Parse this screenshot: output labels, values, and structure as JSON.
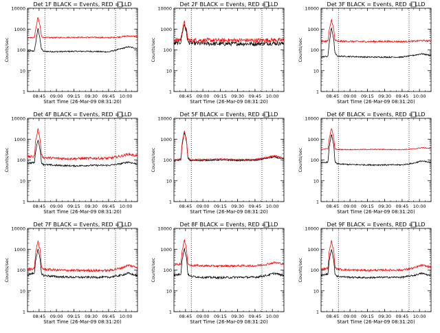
{
  "page": {
    "background": "#ffffff"
  },
  "colors": {
    "events": "#000000",
    "lld": "#ff0000",
    "axis": "#000000"
  },
  "chart_data": [
    {
      "type": "line",
      "title": "Det 1F BLACK = Events, RED = LLD",
      "xlabel": "Start Time (26-Mar-09 08:31:20)",
      "ylabel": "Counts/sec",
      "y_scale": "log",
      "xlim": [
        "08:35",
        "10:10"
      ],
      "ylim": [
        1,
        10000
      ],
      "x_ticks": [
        "08:45",
        "09:00",
        "09:15",
        "09:30",
        "09:45",
        "10:00"
      ],
      "y_ticks": [
        "1",
        "10",
        "100",
        "1000",
        "10000"
      ],
      "markers_x": [
        "08:50",
        "09:51"
      ],
      "grid": false,
      "series": [
        {
          "name": "Events",
          "color": "#000000",
          "noise": 0.03,
          "x": [
            "08:35",
            "08:41",
            "08:42",
            "08:44",
            "08:46",
            "08:47",
            "08:49",
            "09:00",
            "09:15",
            "09:30",
            "09:45",
            "09:55",
            "10:02",
            "10:09"
          ],
          "values": [
            85,
            90,
            200,
            1100,
            300,
            110,
            85,
            82,
            85,
            85,
            80,
            110,
            140,
            120
          ]
        },
        {
          "name": "LLD",
          "color": "#ff0000",
          "noise": 0.03,
          "x": [
            "08:35",
            "08:41",
            "08:42",
            "08:44",
            "08:46",
            "08:47",
            "08:49",
            "09:00",
            "09:15",
            "09:30",
            "09:45",
            "09:55",
            "10:02",
            "10:09"
          ],
          "values": [
            380,
            400,
            900,
            3800,
            1300,
            450,
            390,
            390,
            400,
            400,
            385,
            420,
            470,
            440
          ]
        }
      ]
    },
    {
      "type": "line",
      "title": "Det 2F BLACK = Events, RED = LLD",
      "xlabel": "Start Time (26-Mar-09 08:31:20)",
      "ylabel": "Counts/sec",
      "y_scale": "log",
      "xlim": [
        "08:35",
        "10:10"
      ],
      "ylim": [
        1,
        10000
      ],
      "x_ticks": [
        "08:45",
        "09:00",
        "09:15",
        "09:30",
        "09:45",
        "10:00"
      ],
      "y_ticks": [
        "1",
        "10",
        "100",
        "1000",
        "10000"
      ],
      "markers_x": [
        "08:50",
        "09:51"
      ],
      "grid": false,
      "series": [
        {
          "name": "Events",
          "color": "#000000",
          "noise": 0.1,
          "x": [
            "08:35",
            "08:41",
            "08:42",
            "08:44",
            "08:46",
            "08:47",
            "08:49",
            "09:00",
            "09:15",
            "09:30",
            "09:45",
            "09:55",
            "10:02",
            "10:09"
          ],
          "values": [
            200,
            230,
            600,
            1800,
            600,
            240,
            210,
            200,
            195,
            200,
            195,
            205,
            210,
            200
          ]
        },
        {
          "name": "LLD",
          "color": "#ff0000",
          "noise": 0.1,
          "x": [
            "08:35",
            "08:41",
            "08:42",
            "08:44",
            "08:46",
            "08:47",
            "08:49",
            "09:00",
            "09:15",
            "09:30",
            "09:45",
            "09:55",
            "10:02",
            "10:09"
          ],
          "values": [
            280,
            320,
            800,
            2200,
            800,
            320,
            290,
            290,
            285,
            290,
            285,
            295,
            300,
            290
          ]
        }
      ]
    },
    {
      "type": "line",
      "title": "Det 3F BLACK = Events, RED = LLD",
      "xlabel": "Start Time (26-Mar-09 08:31:20)",
      "ylabel": "Counts/sec",
      "y_scale": "log",
      "xlim": [
        "08:35",
        "10:10"
      ],
      "ylim": [
        1,
        10000
      ],
      "x_ticks": [
        "08:45",
        "09:00",
        "09:15",
        "09:30",
        "09:45",
        "10:00"
      ],
      "y_ticks": [
        "1",
        "10",
        "100",
        "1000",
        "10000"
      ],
      "markers_x": [
        "08:50",
        "09:51"
      ],
      "grid": false,
      "series": [
        {
          "name": "Events",
          "color": "#000000",
          "noise": 0.03,
          "x": [
            "08:35",
            "08:41",
            "08:42",
            "08:44",
            "08:46",
            "08:47",
            "08:49",
            "09:00",
            "09:15",
            "09:30",
            "09:45",
            "09:55",
            "10:02",
            "10:09"
          ],
          "values": [
            45,
            50,
            200,
            1200,
            300,
            70,
            50,
            48,
            45,
            45,
            45,
            55,
            65,
            55
          ]
        },
        {
          "name": "LLD",
          "color": "#ff0000",
          "noise": 0.04,
          "x": [
            "08:35",
            "08:41",
            "08:42",
            "08:44",
            "08:46",
            "08:47",
            "08:49",
            "09:00",
            "09:15",
            "09:30",
            "09:45",
            "09:55",
            "10:02",
            "10:09"
          ],
          "values": [
            250,
            270,
            800,
            3000,
            900,
            290,
            260,
            255,
            250,
            255,
            250,
            260,
            280,
            265
          ]
        }
      ]
    },
    {
      "type": "line",
      "title": "Det 4F BLACK = Events, RED = LLD",
      "xlabel": "Start Time (26-Mar-09 08:31:20)",
      "ylabel": "Counts/sec",
      "y_scale": "log",
      "xlim": [
        "08:35",
        "10:10"
      ],
      "ylim": [
        1,
        10000
      ],
      "x_ticks": [
        "08:45",
        "09:00",
        "09:15",
        "09:30",
        "09:45",
        "10:00"
      ],
      "y_ticks": [
        "1",
        "10",
        "100",
        "1000",
        "10000"
      ],
      "markers_x": [
        "08:50",
        "09:51"
      ],
      "grid": false,
      "series": [
        {
          "name": "Events",
          "color": "#000000",
          "noise": 0.04,
          "x": [
            "08:35",
            "08:41",
            "08:42",
            "08:44",
            "08:46",
            "08:47",
            "08:49",
            "09:00",
            "09:15",
            "09:30",
            "09:45",
            "09:55",
            "10:02",
            "10:09"
          ],
          "values": [
            70,
            75,
            250,
            1000,
            300,
            75,
            60,
            55,
            52,
            55,
            55,
            65,
            80,
            65
          ]
        },
        {
          "name": "LLD",
          "color": "#ff0000",
          "noise": 0.06,
          "x": [
            "08:35",
            "08:41",
            "08:42",
            "08:44",
            "08:46",
            "08:47",
            "08:49",
            "09:00",
            "09:15",
            "09:30",
            "09:45",
            "09:55",
            "10:02",
            "10:09"
          ],
          "values": [
            140,
            150,
            800,
            3200,
            900,
            170,
            130,
            120,
            115,
            120,
            120,
            150,
            190,
            160
          ]
        }
      ]
    },
    {
      "type": "line",
      "title": "Det 5F BLACK = Events, RED = LLD",
      "xlabel": "Start Time (26-Mar-09 08:31:20)",
      "ylabel": "Counts/sec",
      "y_scale": "log",
      "xlim": [
        "08:35",
        "10:10"
      ],
      "ylim": [
        1,
        10000
      ],
      "x_ticks": [
        "08:45",
        "09:00",
        "09:15",
        "09:30",
        "09:45",
        "10:00"
      ],
      "y_ticks": [
        "1",
        "10",
        "100",
        "1000",
        "10000"
      ],
      "markers_x": [
        "08:50",
        "09:51"
      ],
      "grid": false,
      "series": [
        {
          "name": "Events",
          "color": "#000000",
          "noise": 0.03,
          "x": [
            "08:35",
            "08:41",
            "08:42",
            "08:44",
            "08:46",
            "08:47",
            "08:49",
            "09:00",
            "09:15",
            "09:30",
            "09:45",
            "09:55",
            "10:02",
            "10:09"
          ],
          "values": [
            90,
            100,
            500,
            2200,
            700,
            120,
            95,
            95,
            100,
            95,
            95,
            120,
            140,
            110
          ]
        },
        {
          "name": "LLD",
          "color": "#ff0000",
          "noise": 0.03,
          "x": [
            "08:35",
            "08:41",
            "08:42",
            "08:44",
            "08:46",
            "08:47",
            "08:49",
            "09:00",
            "09:15",
            "09:30",
            "09:45",
            "09:55",
            "10:02",
            "10:09"
          ],
          "values": [
            100,
            110,
            600,
            2600,
            800,
            135,
            105,
            105,
            110,
            105,
            105,
            135,
            160,
            125
          ]
        }
      ]
    },
    {
      "type": "line",
      "title": "Det 6F BLACK = Events, RED = LLD",
      "xlabel": "Start Time (26-Mar-09 08:31:20)",
      "ylabel": "Counts/sec",
      "y_scale": "log",
      "xlim": [
        "08:35",
        "10:10"
      ],
      "ylim": [
        1,
        10000
      ],
      "x_ticks": [
        "08:45",
        "09:00",
        "09:15",
        "09:30",
        "09:45",
        "10:00"
      ],
      "y_ticks": [
        "1",
        "10",
        "100",
        "1000",
        "10000"
      ],
      "markers_x": [
        "08:50",
        "09:51"
      ],
      "grid": false,
      "series": [
        {
          "name": "Events",
          "color": "#000000",
          "noise": 0.03,
          "x": [
            "08:35",
            "08:41",
            "08:42",
            "08:44",
            "08:46",
            "08:47",
            "08:49",
            "09:00",
            "09:15",
            "09:30",
            "09:45",
            "09:55",
            "10:02",
            "10:09"
          ],
          "values": [
            70,
            80,
            400,
            1800,
            500,
            80,
            65,
            60,
            58,
            58,
            58,
            70,
            90,
            75
          ]
        },
        {
          "name": "LLD",
          "color": "#ff0000",
          "noise": 0.02,
          "x": [
            "08:35",
            "08:41",
            "08:42",
            "08:44",
            "08:46",
            "08:47",
            "08:49",
            "09:00",
            "09:15",
            "09:30",
            "09:45",
            "09:55",
            "10:02",
            "10:09"
          ],
          "values": [
            330,
            350,
            1000,
            3500,
            1100,
            340,
            320,
            315,
            320,
            320,
            315,
            340,
            390,
            360
          ]
        }
      ]
    },
    {
      "type": "line",
      "title": "Det 7F BLACK = Events, RED = LLD",
      "xlabel": "Start Time (26-Mar-09 08:31:20)",
      "ylabel": "Counts/sec",
      "y_scale": "log",
      "xlim": [
        "08:35",
        "10:10"
      ],
      "ylim": [
        1,
        10000
      ],
      "x_ticks": [
        "08:45",
        "09:00",
        "09:15",
        "09:30",
        "09:45",
        "10:00"
      ],
      "y_ticks": [
        "1",
        "10",
        "100",
        "1000",
        "10000"
      ],
      "markers_x": [
        "08:50",
        "09:51"
      ],
      "grid": false,
      "series": [
        {
          "name": "Events",
          "color": "#000000",
          "noise": 0.05,
          "x": [
            "08:35",
            "08:41",
            "08:42",
            "08:44",
            "08:46",
            "08:47",
            "08:49",
            "09:00",
            "09:15",
            "09:30",
            "09:45",
            "09:55",
            "10:02",
            "10:09"
          ],
          "values": [
            60,
            70,
            300,
            1000,
            300,
            70,
            55,
            48,
            45,
            45,
            45,
            55,
            70,
            55
          ]
        },
        {
          "name": "LLD",
          "color": "#ff0000",
          "noise": 0.06,
          "x": [
            "08:35",
            "08:41",
            "08:42",
            "08:44",
            "08:46",
            "08:47",
            "08:49",
            "09:00",
            "09:15",
            "09:30",
            "09:45",
            "09:55",
            "10:02",
            "10:09"
          ],
          "values": [
            110,
            120,
            700,
            2600,
            800,
            140,
            110,
            100,
            95,
            95,
            95,
            120,
            170,
            140
          ]
        }
      ]
    },
    {
      "type": "line",
      "title": "Det 8F BLACK = Events, RED = LLD",
      "xlabel": "Start Time (26-Mar-09 08:31:20)",
      "ylabel": "Counts/sec",
      "y_scale": "log",
      "xlim": [
        "08:35",
        "10:10"
      ],
      "ylim": [
        1,
        10000
      ],
      "x_ticks": [
        "08:45",
        "09:00",
        "09:15",
        "09:30",
        "09:45",
        "10:00"
      ],
      "y_ticks": [
        "1",
        "10",
        "100",
        "1000",
        "10000"
      ],
      "markers_x": [
        "08:50",
        "09:51"
      ],
      "grid": false,
      "series": [
        {
          "name": "Events",
          "color": "#000000",
          "noise": 0.05,
          "x": [
            "08:35",
            "08:41",
            "08:42",
            "08:44",
            "08:46",
            "08:47",
            "08:49",
            "09:00",
            "09:15",
            "09:30",
            "09:45",
            "09:55",
            "10:02",
            "10:09"
          ],
          "values": [
            55,
            65,
            300,
            1100,
            350,
            65,
            50,
            45,
            43,
            45,
            45,
            55,
            70,
            55
          ]
        },
        {
          "name": "LLD",
          "color": "#ff0000",
          "noise": 0.05,
          "x": [
            "08:35",
            "08:41",
            "08:42",
            "08:44",
            "08:46",
            "08:47",
            "08:49",
            "09:00",
            "09:15",
            "09:30",
            "09:45",
            "09:55",
            "10:02",
            "10:09"
          ],
          "values": [
            180,
            200,
            800,
            2800,
            900,
            200,
            170,
            160,
            155,
            160,
            160,
            190,
            230,
            200
          ]
        }
      ]
    },
    {
      "type": "line",
      "title": "Det 9F BLACK = Events, RED = LLD",
      "xlabel": "Start Time (26-Mar-09 08:31:20)",
      "ylabel": "Counts/sec",
      "y_scale": "log",
      "xlim": [
        "08:35",
        "10:10"
      ],
      "ylim": [
        1,
        10000
      ],
      "x_ticks": [
        "08:45",
        "09:00",
        "09:15",
        "09:30",
        "09:45",
        "10:00"
      ],
      "y_ticks": [
        "1",
        "10",
        "100",
        "1000",
        "10000"
      ],
      "markers_x": [
        "08:50",
        "09:51"
      ],
      "grid": false,
      "series": [
        {
          "name": "Events",
          "color": "#000000",
          "noise": 0.04,
          "x": [
            "08:35",
            "08:41",
            "08:42",
            "08:44",
            "08:46",
            "08:47",
            "08:49",
            "09:00",
            "09:15",
            "09:30",
            "09:45",
            "09:55",
            "10:02",
            "10:09"
          ],
          "values": [
            55,
            65,
            300,
            1000,
            300,
            65,
            50,
            45,
            43,
            45,
            45,
            55,
            70,
            55
          ]
        },
        {
          "name": "LLD",
          "color": "#ff0000",
          "noise": 0.05,
          "x": [
            "08:35",
            "08:41",
            "08:42",
            "08:44",
            "08:46",
            "08:47",
            "08:49",
            "09:00",
            "09:15",
            "09:30",
            "09:45",
            "09:55",
            "10:02",
            "10:09"
          ],
          "values": [
            110,
            125,
            700,
            2600,
            800,
            140,
            110,
            100,
            97,
            100,
            100,
            125,
            170,
            140
          ]
        }
      ]
    }
  ]
}
